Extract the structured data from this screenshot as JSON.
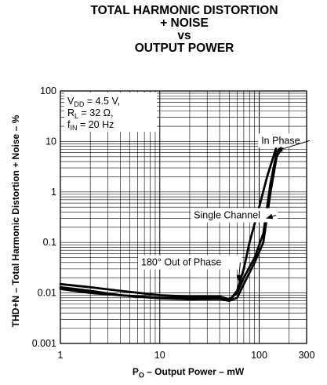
{
  "chart_data": {
    "type": "line",
    "title_lines": [
      "TOTAL HARMONIC DISTORTION",
      "+ NOISE",
      "vs",
      "OUTPUT POWER"
    ],
    "xlabel_main": "P",
    "xlabel_sub": "O",
    "xlabel_rest": " – Output Power – mW",
    "ylabel": "THD+N – Total Harmonic Distortion + Noise – %",
    "x_scale": "log",
    "y_scale": "log",
    "xlim": [
      1,
      300
    ],
    "ylim": [
      0.001,
      100
    ],
    "x_ticks": [
      {
        "value": 1,
        "label": "1"
      },
      {
        "value": 10,
        "label": "10"
      },
      {
        "value": 100,
        "label": "100"
      },
      {
        "value": 300,
        "label": "300"
      }
    ],
    "y_ticks": [
      {
        "value": 100,
        "label": "100"
      },
      {
        "value": 10,
        "label": "10"
      },
      {
        "value": 1,
        "label": "1"
      },
      {
        "value": 0.1,
        "label": "0.1"
      },
      {
        "value": 0.01,
        "label": "0.01"
      },
      {
        "value": 0.001,
        "label": "0.001"
      }
    ],
    "grid": true,
    "conditions": [
      {
        "main": "V",
        "sub": "DD",
        "rest": " = 4.5 V,"
      },
      {
        "main": "R",
        "sub": "L",
        "rest": " = 32 Ω,"
      },
      {
        "main": "f",
        "sub": "IN",
        "rest": " = 20 Hz"
      }
    ],
    "series": [
      {
        "name": "In Phase",
        "x": [
          1,
          2,
          4,
          10,
          20,
          40,
          50,
          60,
          70,
          80,
          100,
          120,
          150,
          180
        ],
        "y": [
          0.012,
          0.01,
          0.009,
          0.008,
          0.008,
          0.008,
          0.007,
          0.011,
          0.03,
          0.1,
          0.5,
          2,
          8,
          12
        ]
      },
      {
        "name": "Single Channel",
        "x": [
          1,
          2,
          4,
          10,
          20,
          40,
          50,
          60,
          70,
          90,
          110,
          130,
          150,
          180
        ],
        "y": [
          0.013,
          0.011,
          0.009,
          0.0078,
          0.0075,
          0.0076,
          0.007,
          0.008,
          0.015,
          0.04,
          0.1,
          1,
          5,
          9
        ]
      },
      {
        "name": "180° Out of Phase",
        "x": [
          1,
          2,
          4,
          10,
          20,
          40,
          50,
          60,
          70,
          90,
          110,
          130,
          150,
          180
        ],
        "y": [
          0.015,
          0.013,
          0.011,
          0.009,
          0.0085,
          0.0085,
          0.0075,
          0.01,
          0.02,
          0.05,
          0.15,
          1.5,
          6,
          10
        ]
      }
    ],
    "annotations": [
      {
        "text": "In Phase",
        "series": "In Phase",
        "label_at": [
          105,
          9
        ],
        "arrow_to": [
          148,
          6.5
        ]
      },
      {
        "text": "Single Channel",
        "series": "Single Channel",
        "label_at": [
          22,
          0.3
        ],
        "arrow_to": [
          118,
          0.3
        ]
      },
      {
        "text": "180° Out of Phase",
        "series": "180° Out of Phase",
        "label_at": [
          6.5,
          0.035
        ],
        "arrow_to": [
          62,
          0.017
        ]
      }
    ]
  }
}
